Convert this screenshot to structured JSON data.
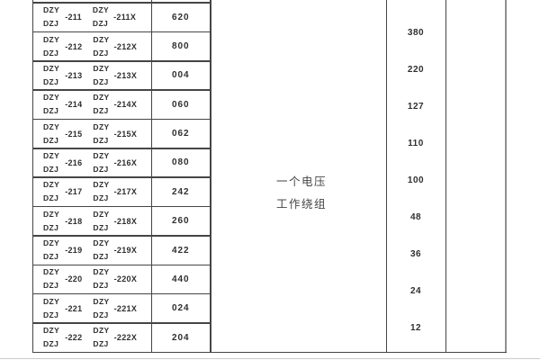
{
  "document": {
    "brand_top": "DZY",
    "brand_bottom": "DZJ",
    "rows": [
      {
        "suffix": "-211",
        "suffix_x": "-211X",
        "code": "620"
      },
      {
        "suffix": "-212",
        "suffix_x": "-212X",
        "code": "800"
      },
      {
        "suffix": "-213",
        "suffix_x": "-213X",
        "code": "004"
      },
      {
        "suffix": "-214",
        "suffix_x": "-214X",
        "code": "060"
      },
      {
        "suffix": "-215",
        "suffix_x": "-215X",
        "code": "062"
      },
      {
        "suffix": "-216",
        "suffix_x": "-216X",
        "code": "080"
      },
      {
        "suffix": "-217",
        "suffix_x": "-217X",
        "code": "242"
      },
      {
        "suffix": "-218",
        "suffix_x": "-218X",
        "code": "260"
      },
      {
        "suffix": "-219",
        "suffix_x": "-219X",
        "code": "422"
      },
      {
        "suffix": "-220",
        "suffix_x": "-220X",
        "code": "440"
      },
      {
        "suffix": "-221",
        "suffix_x": "-221X",
        "code": "024"
      },
      {
        "suffix": "-222",
        "suffix_x": "-222X",
        "code": "204"
      }
    ],
    "winding_label": [
      "一个电压",
      "工作绕组"
    ],
    "voltages": [
      "380",
      "220",
      "127",
      "110",
      "100",
      "48",
      "36",
      "24",
      "12"
    ]
  }
}
